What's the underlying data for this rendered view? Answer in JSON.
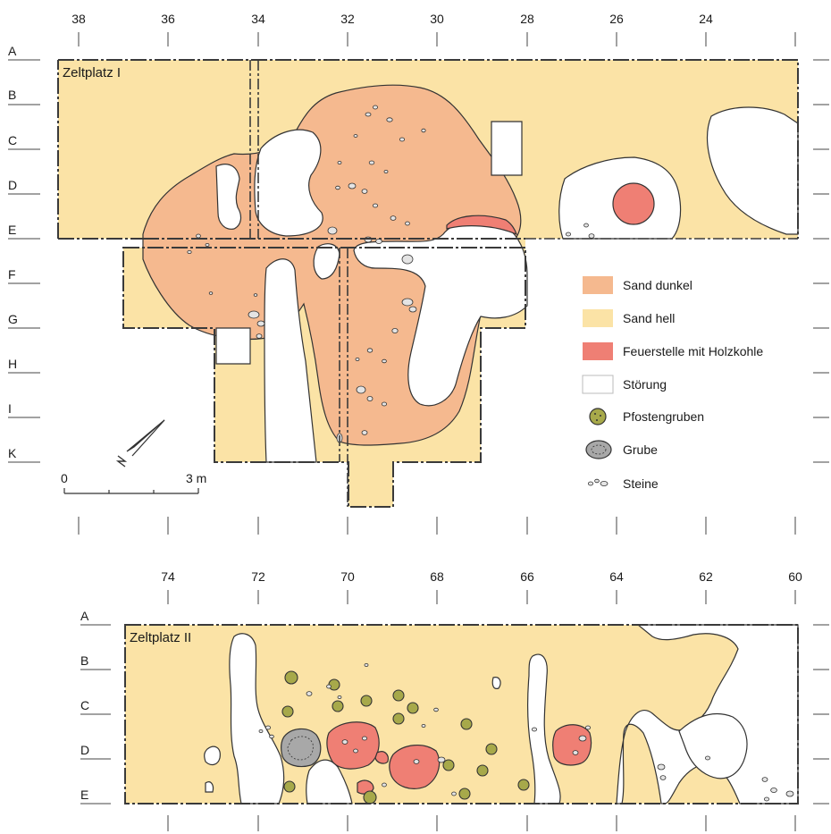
{
  "plan_upper": {
    "title": "Zeltplatz I",
    "columns": [
      "38",
      "36",
      "34",
      "32",
      "30",
      "28",
      "26",
      "24"
    ],
    "rows": [
      "A",
      "B",
      "C",
      "D",
      "E",
      "F",
      "G",
      "H",
      "I",
      "K"
    ]
  },
  "plan_lower": {
    "title": "Zeltplatz II",
    "columns": [
      "74",
      "72",
      "70",
      "68",
      "66",
      "64",
      "62",
      "60"
    ],
    "rows": [
      "A",
      "B",
      "C",
      "D",
      "E"
    ]
  },
  "scale": {
    "start": "0",
    "end": "3 m"
  },
  "legend": [
    {
      "key": "sand-dunkel",
      "label": "Sand dunkel",
      "color": "#f5b98f"
    },
    {
      "key": "sand-hell",
      "label": "Sand hell",
      "color": "#fbe3a6"
    },
    {
      "key": "feuerstelle",
      "label": "Feuerstelle mit Holzkohle",
      "color": "#ef7f74"
    },
    {
      "key": "stoerung",
      "label": "Störung",
      "color": "#ffffff"
    },
    {
      "key": "pfostengruben",
      "label": "Pfostengruben",
      "color": "#a7a94a"
    },
    {
      "key": "grube",
      "label": "Grube",
      "color": "#a8a8a8"
    },
    {
      "key": "steine",
      "label": "Steine",
      "color": "#e4e4e4"
    }
  ]
}
